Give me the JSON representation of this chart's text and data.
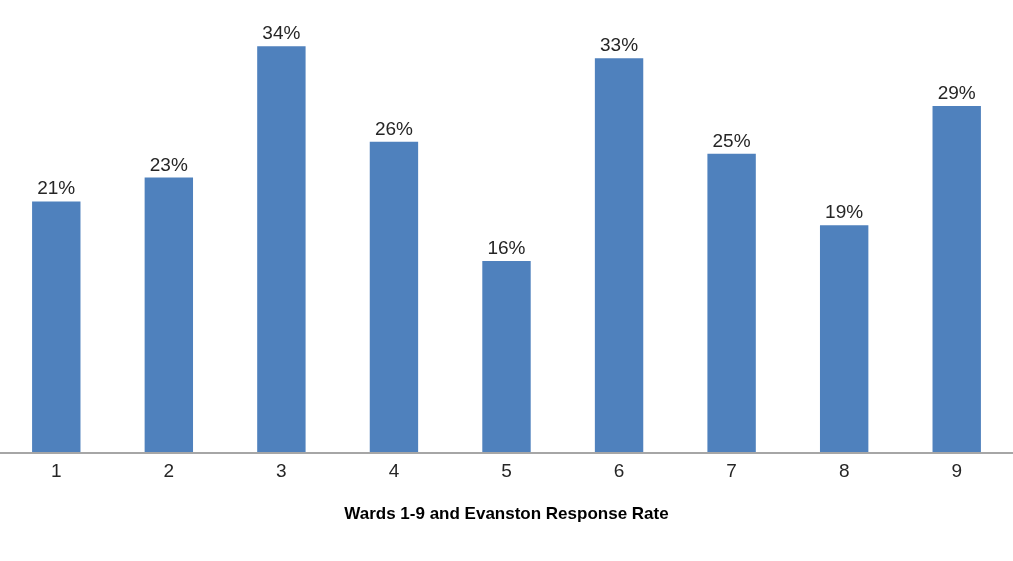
{
  "chart_data": {
    "type": "bar",
    "xlabel": "Wards 1-9 and Evanston Response Rate",
    "categories": [
      "1",
      "2",
      "3",
      "4",
      "5",
      "6",
      "7",
      "8",
      "9"
    ],
    "values": [
      21,
      23,
      34,
      26,
      16,
      33,
      25,
      19,
      29
    ],
    "value_labels": [
      "21%",
      "23%",
      "34%",
      "26%",
      "16%",
      "33%",
      "25%",
      "19%",
      "29%"
    ],
    "color": "#4f81bd",
    "tick_labels": "x"
  }
}
